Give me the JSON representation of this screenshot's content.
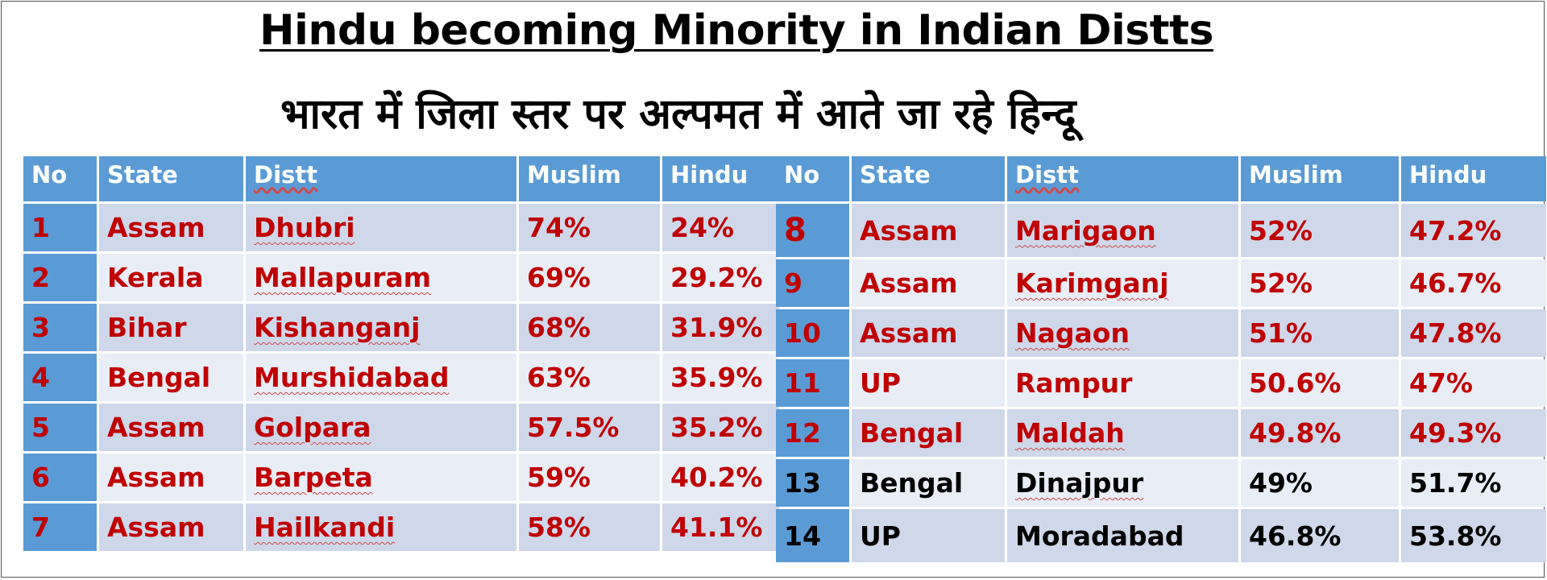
{
  "title": "Hindu becoming Minority in Indian Distts",
  "subtitle": "भारत में जिला स्तर पर अल्पमत में आते जा रहे हिन्दू",
  "headers": {
    "no": "No",
    "state": "State",
    "distt": "Distt",
    "muslim": "Muslim",
    "hindu": "Hindu"
  },
  "left_rows": [
    {
      "no": "1",
      "state": "Assam",
      "distt": "Dhubri",
      "muslim": "74%",
      "hindu": "24%"
    },
    {
      "no": "2",
      "state": "Kerala",
      "distt": "Mallapuram",
      "muslim": "69%",
      "hindu": "29.2%"
    },
    {
      "no": "3",
      "state": "Bihar",
      "distt": "Kishanganj",
      "muslim": "68%",
      "hindu": "31.9%"
    },
    {
      "no": "4",
      "state": "Bengal",
      "distt": "Murshidabad",
      "muslim": "63%",
      "hindu": "35.9%"
    },
    {
      "no": "5",
      "state": "Assam",
      "distt": "Golpara",
      "muslim": "57.5%",
      "hindu": "35.2%"
    },
    {
      "no": "6",
      "state": "Assam",
      "distt": "Barpeta",
      "muslim": "59%",
      "hindu": "40.2%"
    },
    {
      "no": "7",
      "state": "Assam",
      "distt": "Hailkandi",
      "muslim": "58%",
      "hindu": "41.1%"
    }
  ],
  "right_rows": [
    {
      "no": "8",
      "state": "Assam",
      "distt": "Marigaon",
      "muslim": "52%",
      "hindu": "47.2%"
    },
    {
      "no": "9",
      "state": "Assam",
      "distt": "Karimganj",
      "muslim": "52%",
      "hindu": "46.7%"
    },
    {
      "no": "10",
      "state": "Assam",
      "distt": "Nagaon",
      "muslim": "51%",
      "hindu": "47.8%"
    },
    {
      "no": "11",
      "state": "UP",
      "distt": "Rampur",
      "muslim": "50.6%",
      "hindu": "47%"
    },
    {
      "no": "12",
      "state": "Bengal",
      "distt": "Maldah",
      "muslim": "49.8%",
      "hindu": "49.3%"
    },
    {
      "no": "13",
      "state": "Bengal",
      "distt": "Dinajpur",
      "muslim": "49%",
      "hindu": "51.7%"
    },
    {
      "no": "14",
      "state": "UP",
      "distt": "Moradabad",
      "muslim": "46.8%",
      "hindu": "53.8%"
    }
  ],
  "colors": {
    "header_blue": "#5b9bd5",
    "red_text": "#c00000",
    "row_dark": "#cfd8ea",
    "row_light": "#e9edf5"
  }
}
